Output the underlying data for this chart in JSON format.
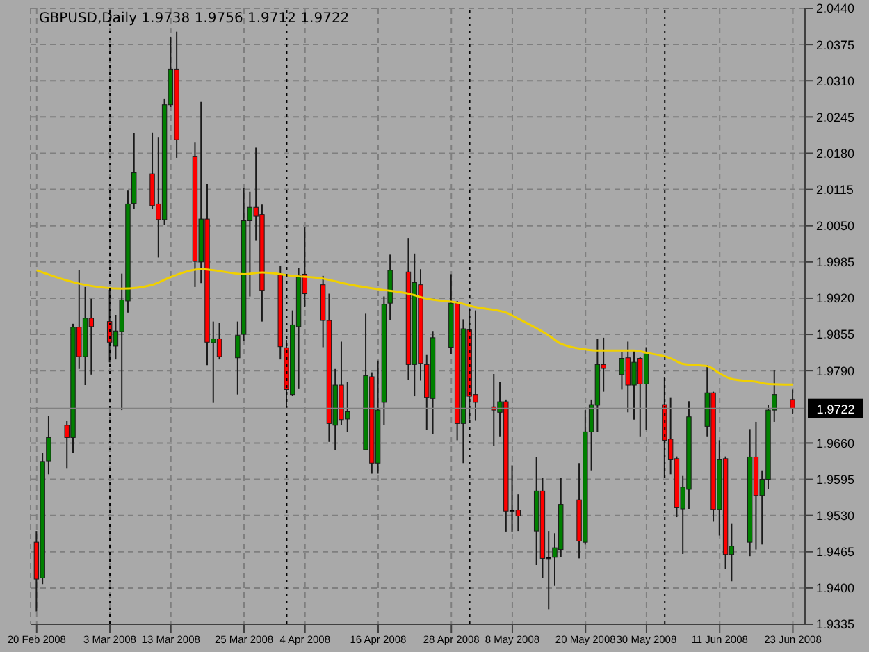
{
  "chart_data": {
    "type": "candlestick",
    "title": "GBPUSD,Daily  1.9738 1.9756 1.9712 1.9722",
    "x": [
      "2008-02-20",
      "2008-02-21",
      "2008-02-22",
      "2008-02-25",
      "2008-02-26",
      "2008-02-27",
      "2008-02-28",
      "2008-02-29",
      "2008-03-03",
      "2008-03-04",
      "2008-03-05",
      "2008-03-06",
      "2008-03-07",
      "2008-03-10",
      "2008-03-11",
      "2008-03-12",
      "2008-03-13",
      "2008-03-14",
      "2008-03-17",
      "2008-03-18",
      "2008-03-19",
      "2008-03-20",
      "2008-03-21",
      "2008-03-24",
      "2008-03-25",
      "2008-03-26",
      "2008-03-27",
      "2008-03-28",
      "2008-03-31",
      "2008-04-01",
      "2008-04-02",
      "2008-04-03",
      "2008-04-04",
      "2008-04-07",
      "2008-04-08",
      "2008-04-09",
      "2008-04-10",
      "2008-04-11",
      "2008-04-14",
      "2008-04-15",
      "2008-04-16",
      "2008-04-17",
      "2008-04-18",
      "2008-04-21",
      "2008-04-22",
      "2008-04-23",
      "2008-04-24",
      "2008-04-25",
      "2008-04-28",
      "2008-04-29",
      "2008-04-30",
      "2008-05-01",
      "2008-05-02",
      "2008-05-05",
      "2008-05-06",
      "2008-05-07",
      "2008-05-08",
      "2008-05-09",
      "2008-05-12",
      "2008-05-13",
      "2008-05-14",
      "2008-05-15",
      "2008-05-16",
      "2008-05-19",
      "2008-05-20",
      "2008-05-21",
      "2008-05-22",
      "2008-05-23",
      "2008-05-26",
      "2008-05-27",
      "2008-05-28",
      "2008-05-29",
      "2008-05-30",
      "2008-06-02",
      "2008-06-03",
      "2008-06-04",
      "2008-06-05",
      "2008-06-06",
      "2008-06-09",
      "2008-06-10",
      "2008-06-11",
      "2008-06-12",
      "2008-06-13",
      "2008-06-16",
      "2008-06-17",
      "2008-06-18",
      "2008-06-19",
      "2008-06-20",
      "2008-06-23"
    ],
    "ohlc": [
      [
        1.9482,
        1.9502,
        1.9358,
        1.9416
      ],
      [
        1.9418,
        1.9643,
        1.9407,
        1.9627
      ],
      [
        1.9628,
        1.9709,
        1.9604,
        1.967
      ],
      [
        1.9692,
        1.97,
        1.9614,
        1.967
      ],
      [
        1.967,
        1.9874,
        1.9643,
        1.9868
      ],
      [
        1.9868,
        1.997,
        1.9793,
        1.9815
      ],
      [
        1.9815,
        1.994,
        1.9764,
        1.9884
      ],
      [
        1.9884,
        1.9919,
        1.9783,
        1.9869
      ],
      [
        1.9878,
        1.9935,
        1.9805,
        1.9841
      ],
      [
        1.9834,
        1.989,
        1.981,
        1.9861
      ],
      [
        1.986,
        1.9964,
        1.9719,
        1.9917
      ],
      [
        1.9915,
        2.0113,
        1.9894,
        2.0089
      ],
      [
        2.009,
        2.0216,
        2.008,
        2.0145
      ],
      [
        2.0143,
        2.0217,
        2.008,
        2.0086
      ],
      [
        2.0089,
        2.0209,
        1.9993,
        2.0061
      ],
      [
        2.0061,
        2.0278,
        2.0052,
        2.0267
      ],
      [
        2.0267,
        2.0389,
        2.0263,
        2.0331
      ],
      [
        2.0331,
        2.0398,
        2.0172,
        2.0204
      ],
      [
        2.0174,
        2.0199,
        1.994,
        1.9986
      ],
      [
        1.9985,
        2.0272,
        1.9947,
        2.0062
      ],
      [
        2.0062,
        2.0125,
        1.98,
        1.9841
      ],
      [
        1.984,
        1.9878,
        1.9732,
        1.9847
      ],
      [
        1.9847,
        1.9876,
        1.981,
        1.9815
      ],
      [
        1.9813,
        1.9878,
        1.9747,
        1.9853
      ],
      [
        1.9855,
        2.0118,
        1.9843,
        2.0059
      ],
      [
        2.0059,
        2.0111,
        1.9923,
        2.0083
      ],
      [
        2.0083,
        2.019,
        2.0024,
        2.0067
      ],
      [
        2.007,
        2.0088,
        1.9878,
        1.9934
      ],
      [
        1.9962,
        1.9978,
        1.981,
        1.9833
      ],
      [
        1.9831,
        1.9845,
        1.9726,
        1.9756
      ],
      [
        1.9747,
        1.9898,
        1.9745,
        1.9872
      ],
      [
        1.9869,
        1.9974,
        1.9758,
        1.996
      ],
      [
        1.9963,
        2.0047,
        1.9904,
        1.9928
      ],
      [
        1.9944,
        1.996,
        1.9832,
        1.988
      ],
      [
        1.988,
        1.9928,
        1.9662,
        1.9695
      ],
      [
        1.9692,
        1.9793,
        1.9647,
        1.9764
      ],
      [
        1.9764,
        1.9842,
        1.9692,
        1.9702
      ],
      [
        1.9703,
        1.9769,
        1.968,
        1.9716
      ],
      [
        1.9648,
        1.9892,
        1.9648,
        1.9781
      ],
      [
        1.9779,
        1.9787,
        1.9605,
        1.9624
      ],
      [
        1.9624,
        1.9808,
        1.9605,
        1.9719
      ],
      [
        1.9733,
        1.9923,
        1.9692,
        1.9909
      ],
      [
        1.9911,
        1.9998,
        1.988,
        1.997
      ],
      [
        1.9967,
        2.0027,
        1.9773,
        1.9801
      ],
      [
        1.9801,
        2.0,
        1.9744,
        1.9948
      ],
      [
        1.9944,
        1.9972,
        1.9772,
        1.9803
      ],
      [
        1.9801,
        1.9818,
        1.9684,
        1.9742
      ],
      [
        1.974,
        1.9861,
        1.9676,
        1.9849
      ],
      [
        1.9832,
        1.9963,
        1.982,
        1.9911
      ],
      [
        1.9911,
        1.9915,
        1.9665,
        1.9695
      ],
      [
        1.9695,
        1.9882,
        1.9624,
        1.9865
      ],
      [
        1.9863,
        1.9902,
        1.9702,
        1.9744
      ],
      [
        1.9747,
        1.9898,
        1.9701,
        1.9733
      ],
      [
        1.9725,
        1.9784,
        1.9655,
        1.9719
      ],
      [
        1.9715,
        1.977,
        1.9672,
        1.9734
      ],
      [
        1.9734,
        1.9738,
        1.9501,
        1.9538
      ],
      [
        1.954,
        1.962,
        1.9501,
        1.9538
      ],
      [
        1.954,
        1.9568,
        1.9502,
        1.9529
      ],
      [
        1.9502,
        1.9635,
        1.9441,
        1.9574
      ],
      [
        1.9574,
        1.9598,
        1.9418,
        1.9453
      ],
      [
        1.9455,
        1.9502,
        1.9362,
        1.9453
      ],
      [
        1.9455,
        1.9498,
        1.9404,
        1.9472
      ],
      [
        1.9469,
        1.9597,
        1.9455,
        1.955
      ],
      [
        1.9558,
        1.9624,
        1.9453,
        1.9484
      ],
      [
        1.9482,
        1.9719,
        1.9478,
        1.968
      ],
      [
        1.968,
        1.9738,
        1.9611,
        1.9729
      ],
      [
        1.9728,
        1.9847,
        1.968,
        1.9801
      ],
      [
        1.9801,
        1.9849,
        1.9752,
        1.9794
      ],
      [
        1.9783,
        1.9823,
        1.9756,
        1.9812
      ],
      [
        1.9813,
        1.9842,
        1.9715,
        1.9764
      ],
      [
        1.9764,
        1.9825,
        1.9702,
        1.9805
      ],
      [
        1.9812,
        1.9815,
        1.9672,
        1.9766
      ],
      [
        1.9766,
        1.9832,
        1.9684,
        1.982
      ],
      [
        1.9729,
        1.9778,
        1.9598,
        1.9665
      ],
      [
        1.9667,
        1.9742,
        1.9604,
        1.963
      ],
      [
        1.9632,
        1.9636,
        1.9527,
        1.9544
      ],
      [
        1.9542,
        1.9601,
        1.9461,
        1.9581
      ],
      [
        1.9577,
        1.9735,
        1.9542,
        1.9707
      ],
      [
        1.969,
        1.98,
        1.9672,
        1.975
      ],
      [
        1.975,
        1.9752,
        1.9519,
        1.9541
      ],
      [
        1.9541,
        1.9665,
        1.9494,
        1.963
      ],
      [
        1.9632,
        1.9636,
        1.9434,
        1.946
      ],
      [
        1.946,
        1.9515,
        1.9412,
        1.9475
      ],
      [
        1.9482,
        1.9685,
        1.9457,
        1.9635
      ],
      [
        1.9635,
        1.9698,
        1.9469,
        1.9566
      ],
      [
        1.9566,
        1.9611,
        1.9478,
        1.9595
      ],
      [
        1.9595,
        1.9729,
        1.9577,
        1.9719
      ],
      [
        1.9719,
        1.9791,
        1.9698,
        1.9747
      ],
      [
        1.9738,
        1.9756,
        1.9712,
        1.9722
      ]
    ],
    "colors": [
      "#ff0000",
      "#008000",
      "#008000",
      "#ff0000",
      "#008000",
      "#ff0000",
      "#008000",
      "#ff0000",
      "#ff0000",
      "#008000",
      "#008000",
      "#008000",
      "#008000",
      "#ff0000",
      "#ff0000",
      "#008000",
      "#008000",
      "#ff0000",
      "#ff0000",
      "#008000",
      "#ff0000",
      "#008000",
      "#ff0000",
      "#008000",
      "#008000",
      "#008000",
      "#ff0000",
      "#ff0000",
      "#ff0000",
      "#ff0000",
      "#008000",
      "#008000",
      "#ff0000",
      "#ff0000",
      "#ff0000",
      "#008000",
      "#ff0000",
      "#008000",
      "#008000",
      "#ff0000",
      "#008000",
      "#008000",
      "#008000",
      "#ff0000",
      "#008000",
      "#ff0000",
      "#ff0000",
      "#008000",
      "#008000",
      "#ff0000",
      "#008000",
      "#ff0000",
      "#ff0000",
      "#ff0000",
      "#008000",
      "#ff0000",
      "#000000",
      "#ff0000",
      "#008000",
      "#ff0000",
      "#000000",
      "#008000",
      "#008000",
      "#ff0000",
      "#008000",
      "#008000",
      "#008000",
      "#ff0000",
      "#008000",
      "#ff0000",
      "#008000",
      "#ff0000",
      "#008000",
      "#ff0000",
      "#ff0000",
      "#ff0000",
      "#008000",
      "#008000",
      "#008000",
      "#ff0000",
      "#008000",
      "#ff0000",
      "#008000",
      "#008000",
      "#ff0000",
      "#008000",
      "#008000",
      "#008000",
      "#ff0000"
    ],
    "series": [
      {
        "type": "line",
        "color": "#f0d000",
        "x": [
          "2008-02-20",
          "2008-02-27",
          "2008-03-05",
          "2008-03-10",
          "2008-03-13",
          "2008-03-18",
          "2008-03-20",
          "2008-03-25",
          "2008-03-28",
          "2008-04-02",
          "2008-04-07",
          "2008-04-11",
          "2008-04-16",
          "2008-04-21",
          "2008-04-24",
          "2008-04-29",
          "2008-05-02",
          "2008-05-07",
          "2008-05-09",
          "2008-05-14",
          "2008-05-16",
          "2008-05-20",
          "2008-05-22",
          "2008-05-28",
          "2008-05-30",
          "2008-06-03",
          "2008-06-05",
          "2008-06-09",
          "2008-06-11",
          "2008-06-13",
          "2008-06-17",
          "2008-06-19",
          "2008-06-23"
        ],
        "values": [
          1.997,
          1.9946,
          1.9937,
          1.9944,
          1.9958,
          1.9972,
          1.997,
          1.9963,
          1.9966,
          1.996,
          1.9955,
          1.9945,
          1.9936,
          1.9928,
          1.9919,
          1.9912,
          1.9904,
          1.9894,
          1.9883,
          1.9853,
          1.9838,
          1.9828,
          1.9826,
          1.9826,
          1.9822,
          1.9812,
          1.9802,
          1.9798,
          1.9785,
          1.9775,
          1.977,
          1.9766,
          1.9765
        ]
      }
    ],
    "xlim": [
      "2008-02-19",
      "2008-06-25"
    ],
    "ylim": [
      1.9335,
      2.044
    ],
    "yticks": [
      1.9335,
      {
        "value": 1.94,
        "label": "1.9400"
      },
      1.9465,
      {
        "value": 1.953,
        "label": "1.9530"
      },
      1.9595,
      {
        "value": 1.966,
        "label": "1.9660"
      },
      {
        "value": 1.979,
        "label": "1.9790"
      },
      1.9855,
      {
        "value": 1.992,
        "label": "1.9920"
      },
      1.9985,
      {
        "value": 2.005,
        "label": "2.0050"
      },
      2.0115,
      {
        "value": 2.018,
        "label": "2.0180"
      },
      2.0245,
      {
        "value": 2.031,
        "label": "2.0310"
      },
      2.0375,
      {
        "value": 2.044,
        "label": "2.0440"
      }
    ],
    "xticks": [
      {
        "value": "2008-02-20",
        "label": "20 Feb 2008"
      },
      {
        "value": "2008-03-03",
        "label": "3 Mar 2008"
      },
      {
        "value": "2008-03-13",
        "label": "13 Mar 2008"
      },
      {
        "value": "2008-03-25",
        "label": "25 Mar 2008"
      },
      {
        "value": "2008-04-04",
        "label": "4 Apr 2008"
      },
      {
        "value": "2008-04-16",
        "label": "16 Apr 2008"
      },
      {
        "value": "2008-04-28",
        "label": "28 Apr 2008"
      },
      {
        "value": "2008-05-08",
        "label": "8 May 2008"
      },
      {
        "value": "2008-05-20",
        "label": "20 May 2008"
      },
      {
        "value": "2008-05-30",
        "label": "30 May 2008"
      },
      {
        "value": "2008-06-11",
        "label": "11 Jun 2008"
      },
      {
        "value": "2008-06-23",
        "label": "23 Jun 2008"
      }
    ],
    "ref_lines": [
      {
        "axis": "x",
        "value": "2008-03-03",
        "color": "#000000",
        "line_style": "dotted"
      },
      {
        "axis": "x",
        "value": "2008-04-01",
        "color": "#000000",
        "line_style": "dotted"
      },
      {
        "axis": "x",
        "value": "2008-05-01",
        "color": "#000000",
        "line_style": "dotted"
      },
      {
        "axis": "x",
        "value": "2008-06-02",
        "color": "#000000",
        "line_style": "dotted"
      },
      {
        "axis": "y",
        "value": 1.9722,
        "label": "1.9722",
        "color": "#808080",
        "line_style": "solid"
      }
    ],
    "grid": true
  }
}
